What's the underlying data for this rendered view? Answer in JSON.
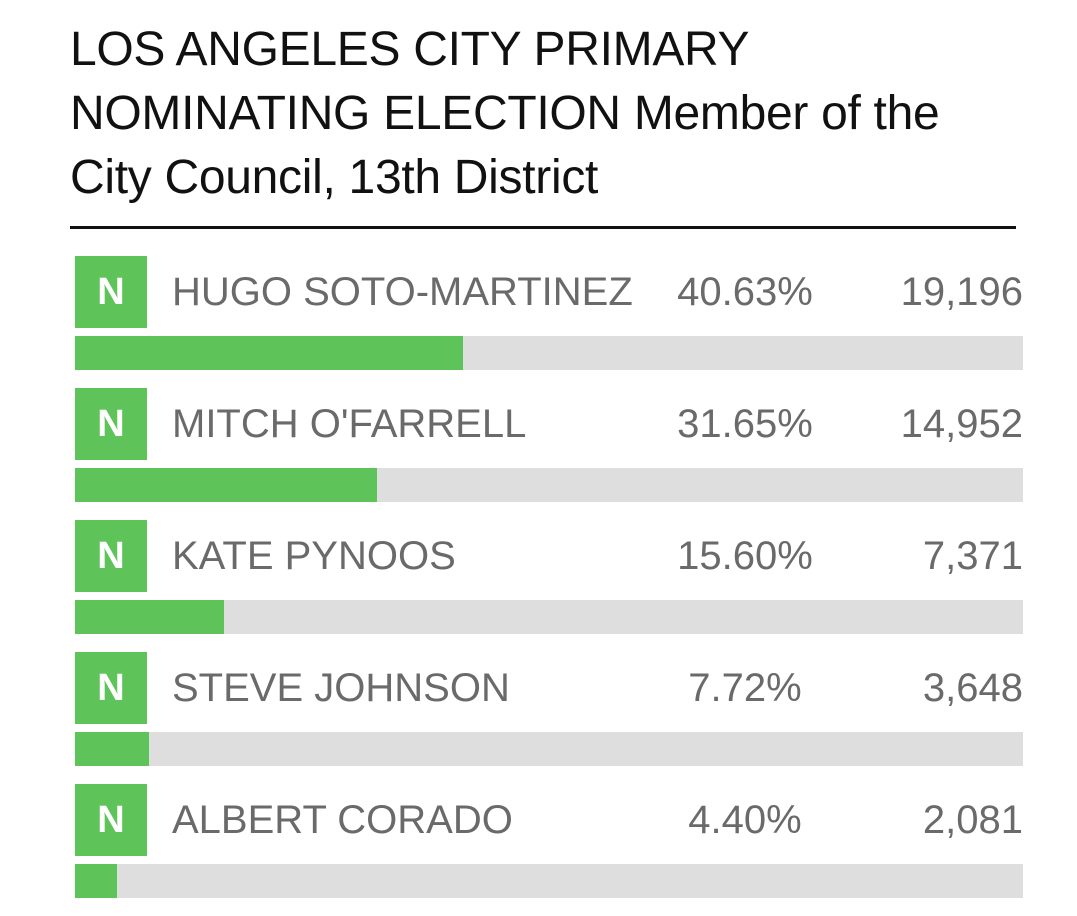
{
  "title": "LOS ANGELES CITY PRIMARY NOMINATING ELECTION Member of the City Council, 13th District",
  "accent_color": "#5ec45a",
  "track_color": "#dedede",
  "candidates": [
    {
      "badge": "N",
      "name": "HUGO SOTO-MARTINEZ",
      "percent_text": "40.63%",
      "percent": 40.63,
      "votes": "19,196"
    },
    {
      "badge": "N",
      "name": "MITCH O'FARRELL",
      "percent_text": "31.65%",
      "percent": 31.65,
      "votes": "14,952"
    },
    {
      "badge": "N",
      "name": "KATE PYNOOS",
      "percent_text": "15.60%",
      "percent": 15.6,
      "votes": "7,371"
    },
    {
      "badge": "N",
      "name": "STEVE JOHNSON",
      "percent_text": "7.72%",
      "percent": 7.72,
      "votes": "3,648"
    },
    {
      "badge": "N",
      "name": "ALBERT CORADO",
      "percent_text": "4.40%",
      "percent": 4.4,
      "votes": "2,081"
    }
  ]
}
